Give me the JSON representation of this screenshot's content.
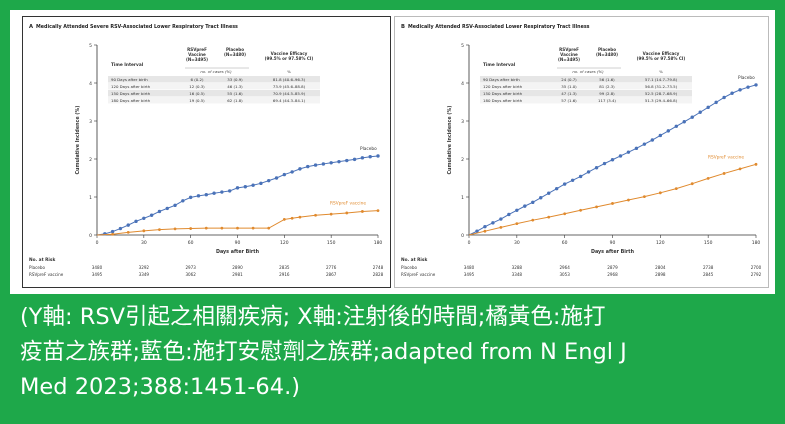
{
  "caption": {
    "line1": "(Y軸: RSV引起之相關疾病; X軸:注射後的時間;橘黃色:施打",
    "line2": "疫苗之族群;藍色:施打安慰劑之族群;adapted from N Engl J",
    "line3": "Med 2023;388:1451-64.)"
  },
  "colors": {
    "frame": "#1ea84a",
    "placebo": "#4a72b8",
    "vaccine": "#e08a2e"
  },
  "chart_data": [
    {
      "type": "line",
      "panel_label": "A",
      "title": "Medically Attended Severe RSV-Associated Lower Respiratory Tract Illness",
      "xlabel": "Days after Birth",
      "ylabel": "Cumulative Incidence (%)",
      "xlim": [
        0,
        180
      ],
      "ylim": [
        0,
        5
      ],
      "xticks": [
        0,
        30,
        60,
        90,
        120,
        150,
        180
      ],
      "yticks": [
        0,
        1,
        2,
        3,
        4,
        5
      ],
      "series": [
        {
          "name": "Placebo",
          "x": [
            0,
            5,
            10,
            15,
            20,
            25,
            30,
            35,
            40,
            45,
            50,
            55,
            60,
            65,
            70,
            75,
            80,
            85,
            90,
            95,
            100,
            105,
            110,
            115,
            120,
            125,
            130,
            135,
            140,
            145,
            150,
            155,
            160,
            165,
            170,
            175,
            180
          ],
          "y": [
            0.0,
            0.03,
            0.09,
            0.17,
            0.26,
            0.36,
            0.44,
            0.52,
            0.62,
            0.7,
            0.78,
            0.9,
            0.99,
            1.03,
            1.06,
            1.1,
            1.13,
            1.16,
            1.24,
            1.27,
            1.31,
            1.36,
            1.43,
            1.5,
            1.59,
            1.66,
            1.74,
            1.8,
            1.84,
            1.87,
            1.9,
            1.93,
            1.96,
            1.99,
            2.03,
            2.06,
            2.08
          ]
        },
        {
          "name": "RSVpreF vaccine",
          "x": [
            0,
            10,
            20,
            30,
            40,
            50,
            60,
            70,
            80,
            90,
            100,
            110,
            120,
            125,
            130,
            140,
            150,
            160,
            170,
            180
          ],
          "y": [
            0.0,
            0.02,
            0.07,
            0.11,
            0.14,
            0.16,
            0.17,
            0.18,
            0.18,
            0.18,
            0.18,
            0.18,
            0.41,
            0.44,
            0.47,
            0.52,
            0.55,
            0.58,
            0.62,
            0.64
          ]
        }
      ],
      "table": {
        "headers": [
          "Time Interval",
          "RSVpreF Vaccine (N=3495)",
          "Placebo (N=3480)",
          "Vaccine Efficacy (99.5% or 97.58% CI)"
        ],
        "subheaders": [
          "",
          "no. of cases (%)",
          "",
          "%"
        ],
        "rows": [
          [
            "90 Days after birth",
            "6 (0.2)",
            "33 (0.9)",
            "81.8 (40.6–96.3)"
          ],
          [
            "120 Days after birth",
            "12 (0.3)",
            "46 (1.3)",
            "73.9 (45.6–88.8)"
          ],
          [
            "150 Days after birth",
            "16 (0.5)",
            "55 (1.6)",
            "70.9 (44.5–85.9)"
          ],
          [
            "180 Days after birth",
            "19 (0.5)",
            "62 (1.8)",
            "69.4 (44.3–84.1)"
          ]
        ]
      },
      "at_risk": {
        "label": "No. at Risk",
        "rows": [
          {
            "name": "Placebo",
            "values": [
              3480,
              3292,
              2973,
              2890,
              2835,
              2776,
              2748
            ]
          },
          {
            "name": "RSVpreF vaccine",
            "values": [
              3495,
              3349,
              3062,
              2981,
              2916,
              2867,
              2828
            ]
          }
        ]
      }
    },
    {
      "type": "line",
      "panel_label": "B",
      "title": "Medically Attended RSV-Associated Lower Respiratory Tract Illness",
      "xlabel": "Days after Birth",
      "ylabel": "Cumulative Incidence (%)",
      "xlim": [
        0,
        180
      ],
      "ylim": [
        0,
        5
      ],
      "xticks": [
        0,
        30,
        60,
        90,
        120,
        150,
        180
      ],
      "yticks": [
        0,
        1,
        2,
        3,
        4,
        5
      ],
      "series": [
        {
          "name": "Placebo",
          "x": [
            0,
            5,
            10,
            15,
            20,
            25,
            30,
            35,
            40,
            45,
            50,
            55,
            60,
            65,
            70,
            75,
            80,
            85,
            90,
            95,
            100,
            105,
            110,
            115,
            120,
            125,
            130,
            135,
            140,
            145,
            150,
            155,
            160,
            165,
            170,
            175,
            180
          ],
          "y": [
            0.0,
            0.1,
            0.22,
            0.32,
            0.42,
            0.54,
            0.65,
            0.76,
            0.86,
            0.98,
            1.1,
            1.22,
            1.34,
            1.44,
            1.54,
            1.66,
            1.77,
            1.88,
            1.98,
            2.08,
            2.18,
            2.28,
            2.39,
            2.5,
            2.62,
            2.74,
            2.86,
            2.98,
            3.1,
            3.23,
            3.36,
            3.49,
            3.62,
            3.73,
            3.82,
            3.89,
            3.95
          ]
        },
        {
          "name": "RSVpreF vaccine",
          "x": [
            0,
            10,
            20,
            30,
            40,
            50,
            60,
            70,
            80,
            90,
            100,
            110,
            120,
            130,
            140,
            150,
            160,
            170,
            180
          ],
          "y": [
            0.0,
            0.1,
            0.2,
            0.3,
            0.39,
            0.47,
            0.56,
            0.65,
            0.74,
            0.83,
            0.92,
            1.01,
            1.11,
            1.22,
            1.35,
            1.49,
            1.62,
            1.74,
            1.86
          ]
        }
      ],
      "table": {
        "headers": [
          "Time Interval",
          "RSVpreF Vaccine (N=3495)",
          "Placebo (N=3480)",
          "Vaccine Efficacy (99.5% or 97.58% CI)"
        ],
        "subheaders": [
          "",
          "no. of cases (%)",
          "",
          "%"
        ],
        "rows": [
          [
            "90 Days after birth",
            "24 (0.7)",
            "56 (1.6)",
            "57.1 (14.7–79.8)"
          ],
          [
            "120 Days after birth",
            "35 (1.0)",
            "81 (2.3)",
            "56.8 (31.2–73.5)"
          ],
          [
            "150 Days after birth",
            "47 (1.3)",
            "99 (2.8)",
            "52.5 (28.7–68.9)"
          ],
          [
            "180 Days after birth",
            "57 (1.6)",
            "117 (3.4)",
            "51.3 (29.4–66.8)"
          ]
        ]
      },
      "at_risk": {
        "label": "No. at Risk",
        "rows": [
          {
            "name": "Placebo",
            "values": [
              3480,
              3288,
              2964,
              2879,
              2804,
              2738,
              2700
            ]
          },
          {
            "name": "RSVpreF vaccine",
            "values": [
              3495,
              3348,
              3053,
              2968,
              2898,
              2845,
              2792
            ]
          }
        ]
      }
    }
  ]
}
